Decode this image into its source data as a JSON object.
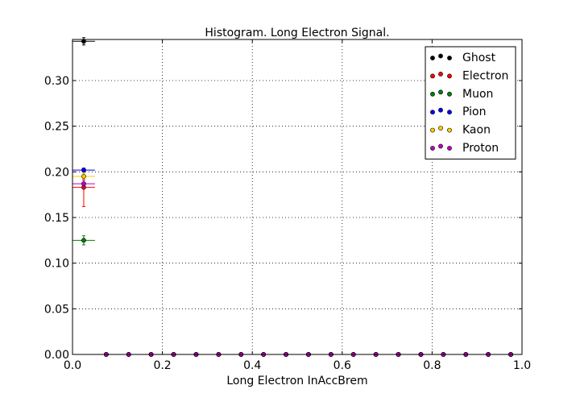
{
  "chart_data": {
    "type": "scatter",
    "title": "Histogram. Long Electron Signal.",
    "xlabel": "Long Electron InAccBrem",
    "ylabel": "",
    "xlim": [
      0.0,
      1.0
    ],
    "ylim": [
      0.0,
      0.345
    ],
    "x_ticks": [
      "0.0",
      "0.2",
      "0.4",
      "0.6",
      "0.8",
      "1.0"
    ],
    "y_ticks": [
      "0.00",
      "0.05",
      "0.10",
      "0.15",
      "0.20",
      "0.25",
      "0.30"
    ],
    "grid": true,
    "legend_position": "top-right",
    "bin_width": 0.05,
    "x": [
      0.025,
      0.075,
      0.125,
      0.175,
      0.225,
      0.275,
      0.325,
      0.375,
      0.425,
      0.475,
      0.525,
      0.575,
      0.625,
      0.675,
      0.725,
      0.775,
      0.825,
      0.875,
      0.925,
      0.975
    ],
    "series": [
      {
        "name": "Ghost",
        "color": "#000000",
        "first": 0.343,
        "err": 0.004
      },
      {
        "name": "Electron",
        "color": "#ff0000",
        "first": 0.183,
        "err": 0.021
      },
      {
        "name": "Muon",
        "color": "#008000",
        "first": 0.125,
        "err": 0.005
      },
      {
        "name": "Pion",
        "color": "#0000ff",
        "first": 0.202,
        "err": 0.002
      },
      {
        "name": "Kaon",
        "color": "#ffcc00",
        "first": 0.195,
        "err": 0.003
      },
      {
        "name": "Proton",
        "color": "#bf00bf",
        "first": 0.187,
        "err": 0.004
      }
    ]
  }
}
